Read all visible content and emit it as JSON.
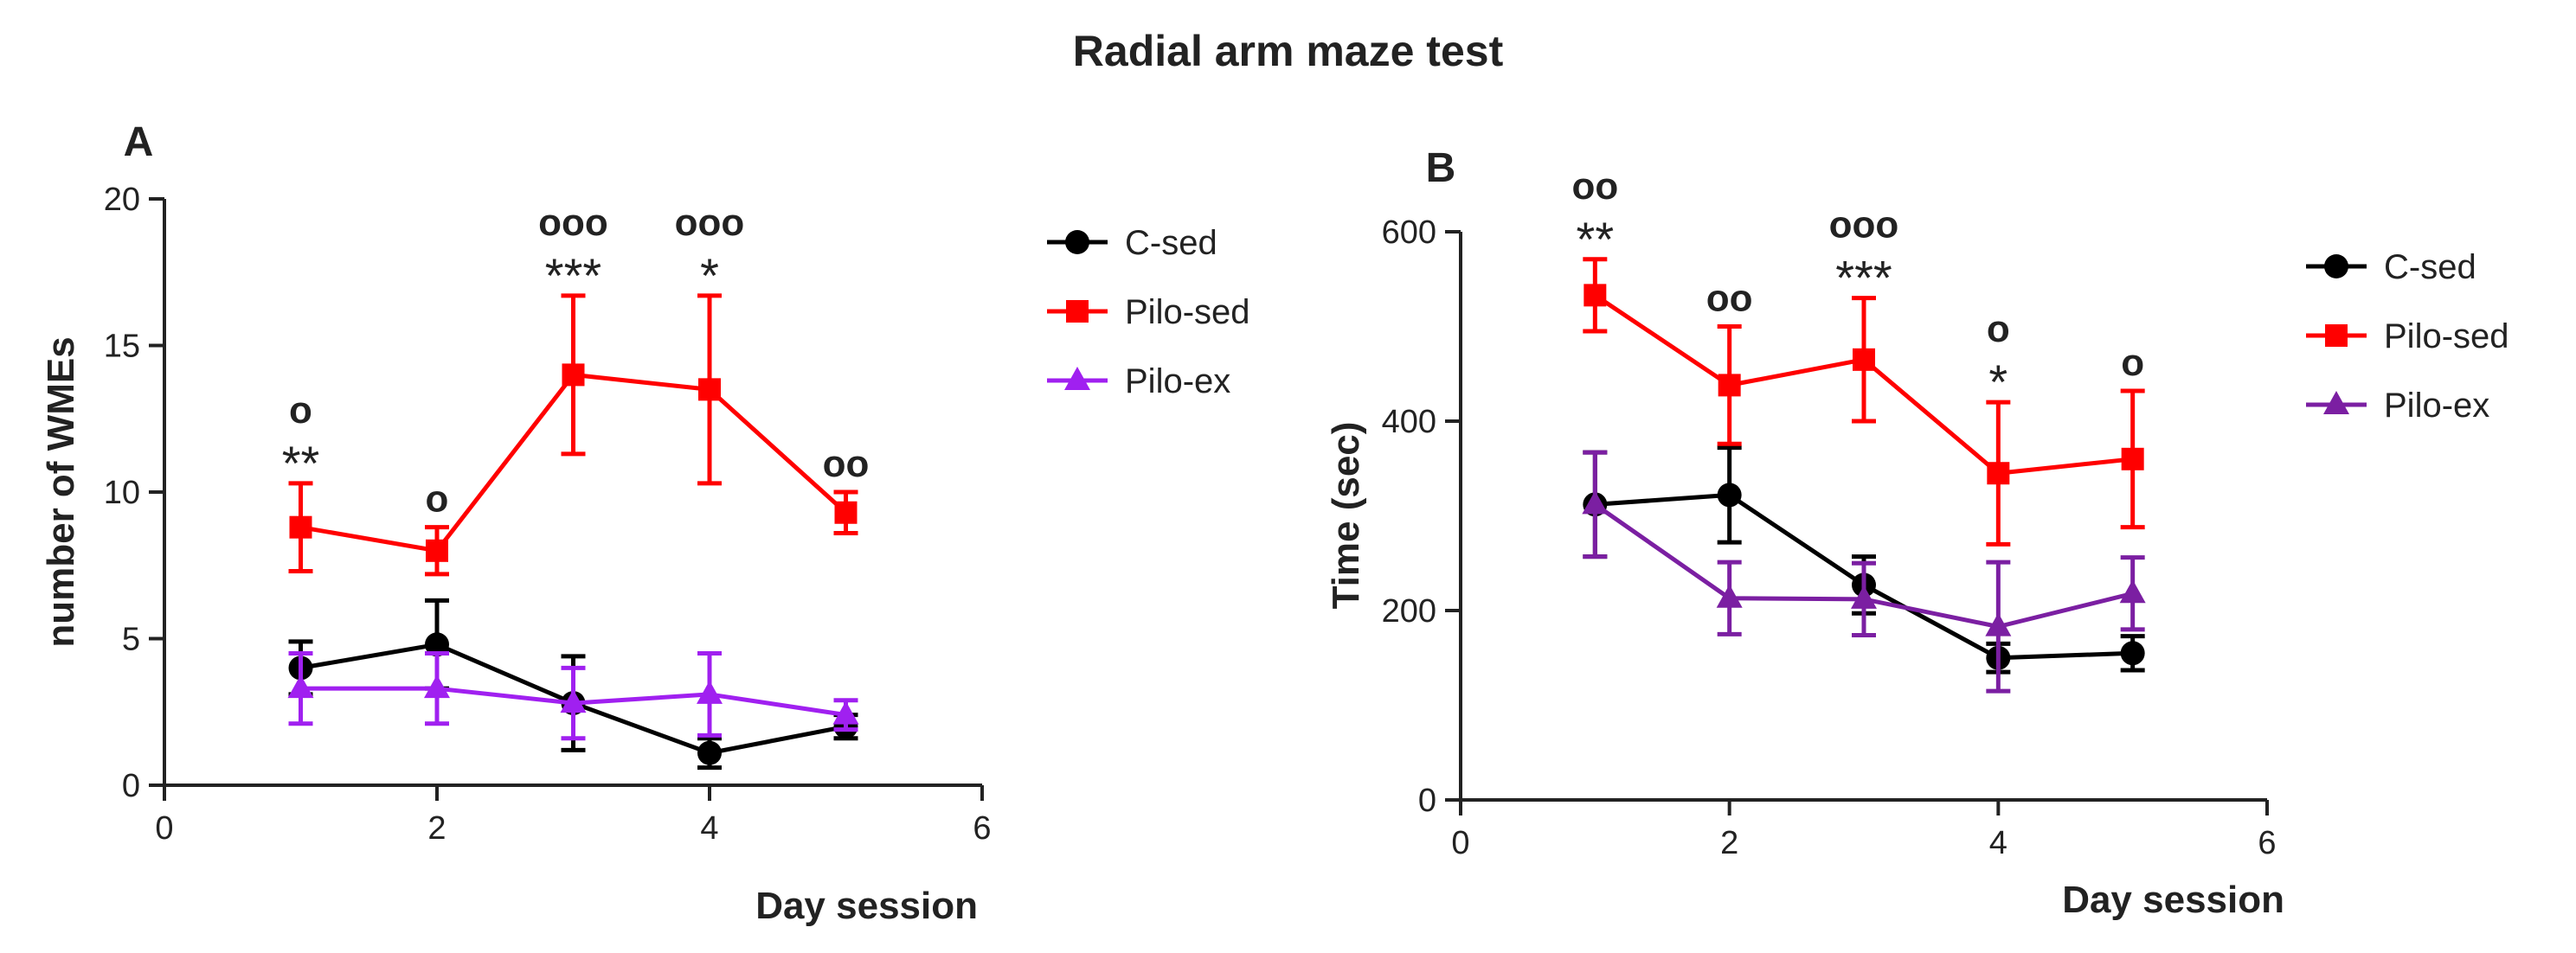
{
  "figure": {
    "title": "Radial arm maze test"
  },
  "chart_data": [
    {
      "type": "line",
      "panel_label": "A",
      "title": "",
      "xlabel": "Day session",
      "ylabel": "number of WMEs",
      "xlim": [
        0,
        6
      ],
      "ylim": [
        0,
        20
      ],
      "xticks": [
        0,
        2,
        4,
        6
      ],
      "yticks": [
        0,
        5,
        10,
        15,
        20
      ],
      "x": [
        1,
        2,
        3,
        4,
        5
      ],
      "series": [
        {
          "name": "C-sed",
          "marker": "circle",
          "color": "#000000",
          "values": [
            4.0,
            4.8,
            2.8,
            1.1,
            2.0
          ],
          "errors": [
            0.9,
            1.5,
            1.6,
            0.5,
            0.4
          ]
        },
        {
          "name": "Pilo-sed",
          "marker": "square",
          "color": "#ff0000",
          "values": [
            8.8,
            8.0,
            14.0,
            13.5,
            9.3
          ],
          "errors": [
            1.5,
            0.8,
            2.7,
            3.2,
            0.7
          ]
        },
        {
          "name": "Pilo-ex",
          "marker": "triangle",
          "color": "#a020f0",
          "values": [
            3.3,
            3.3,
            2.8,
            3.1,
            2.4
          ],
          "errors": [
            1.2,
            1.2,
            1.2,
            1.4,
            0.5
          ]
        }
      ],
      "annotations": [
        {
          "x": 1,
          "lines": [
            "o",
            "**"
          ]
        },
        {
          "x": 2,
          "lines": [
            "o"
          ]
        },
        {
          "x": 3,
          "lines": [
            "ooo",
            "***"
          ]
        },
        {
          "x": 4,
          "lines": [
            "ooo",
            "*"
          ]
        },
        {
          "x": 5,
          "lines": [
            "oo"
          ]
        }
      ]
    },
    {
      "type": "line",
      "panel_label": "B",
      "title": "",
      "xlabel": "Day session",
      "ylabel": "Time (sec)",
      "xlim": [
        0,
        6
      ],
      "ylim": [
        0,
        600
      ],
      "xticks": [
        0,
        2,
        4,
        6
      ],
      "yticks": [
        0,
        200,
        400,
        600
      ],
      "x": [
        1,
        2,
        3,
        4,
        5
      ],
      "series": [
        {
          "name": "C-sed",
          "marker": "circle",
          "color": "#000000",
          "values": [
            312,
            322,
            227,
            150,
            155
          ],
          "errors": [
            55,
            50,
            30,
            15,
            18
          ]
        },
        {
          "name": "Pilo-sed",
          "marker": "square",
          "color": "#ff0000",
          "values": [
            533,
            438,
            465,
            345,
            360
          ],
          "errors": [
            38,
            62,
            65,
            75,
            72
          ]
        },
        {
          "name": "Pilo-ex",
          "marker": "triangle",
          "color": "#7b1fa2",
          "values": [
            312,
            213,
            212,
            183,
            218
          ],
          "errors": [
            55,
            38,
            38,
            68,
            38
          ]
        }
      ],
      "annotations": [
        {
          "x": 1,
          "lines": [
            "oo",
            "**"
          ]
        },
        {
          "x": 2,
          "lines": [
            "oo"
          ]
        },
        {
          "x": 3,
          "lines": [
            "ooo",
            "***"
          ]
        },
        {
          "x": 4,
          "lines": [
            "o",
            "*"
          ]
        },
        {
          "x": 5,
          "lines": [
            "o"
          ]
        }
      ]
    }
  ]
}
